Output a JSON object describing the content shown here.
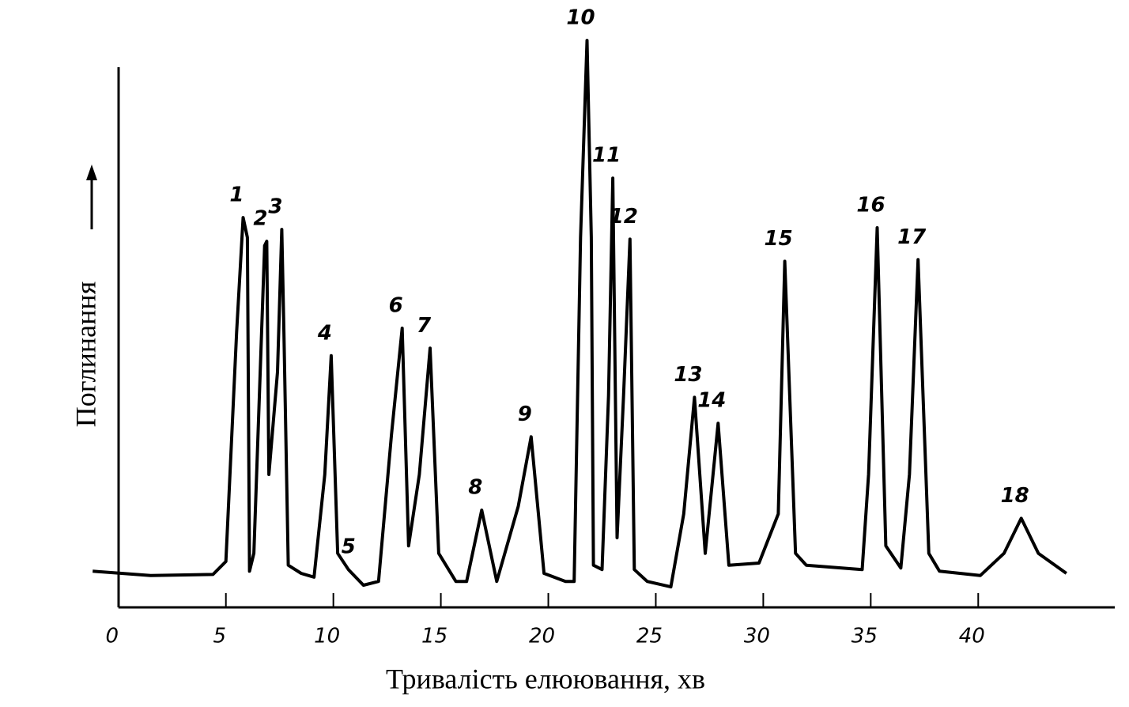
{
  "chart_data": {
    "type": "line",
    "x_label": "Тривалість елюювання, хв",
    "y_label": "Поглинання",
    "xlim": [
      -1.5,
      46.5
    ],
    "ylim": [
      0,
      110
    ],
    "xticks": [
      0,
      5,
      10,
      15,
      20,
      25,
      30,
      35,
      40
    ],
    "color": "#000000",
    "x": [
      -1.2,
      1.5,
      4.4,
      5.0,
      5.5,
      5.8,
      6.0,
      6.1,
      6.3,
      6.8,
      6.9,
      7.0,
      7.4,
      7.6,
      7.7,
      7.9,
      8.5,
      9.1,
      9.6,
      9.9,
      10.2,
      10.7,
      11.4,
      12.1,
      12.7,
      13.2,
      13.5,
      14.0,
      14.5,
      14.9,
      15.7,
      16.2,
      16.9,
      17.6,
      18.6,
      19.2,
      19.8,
      20.8,
      21.2,
      21.5,
      21.8,
      22.0,
      22.1,
      22.5,
      22.8,
      23.0,
      23.2,
      23.5,
      23.8,
      24.0,
      24.6,
      25.7,
      26.3,
      26.8,
      27.3,
      27.9,
      28.4,
      29.8,
      30.7,
      31.0,
      31.5,
      32.0,
      34.6,
      34.9,
      35.3,
      35.7,
      36.4,
      36.8,
      37.2,
      37.7,
      38.2,
      40.1,
      41.2,
      42.0,
      42.8,
      44.1
    ],
    "values": [
      6.7,
      5.9,
      6.1,
      8.5,
      51,
      72.2,
      68.5,
      6.7,
      10,
      67,
      67.8,
      24.6,
      43.6,
      70,
      51,
      7.8,
      6.3,
      5.6,
      24.6,
      46.6,
      10,
      7.0,
      4.1,
      4.8,
      31.9,
      51.7,
      11.4,
      24.6,
      48,
      10,
      4.8,
      4.8,
      18,
      4.8,
      18.7,
      31.6,
      6.3,
      4.8,
      4.8,
      68.5,
      105,
      68.5,
      7.8,
      7.0,
      39.2,
      79.5,
      12.9,
      39.2,
      68.2,
      7.0,
      4.8,
      3.8,
      17.3,
      38.9,
      10,
      34.1,
      7.8,
      8.2,
      17.3,
      64.1,
      10,
      7.8,
      7.0,
      24.6,
      70.3,
      11.4,
      7.3,
      24.6,
      64.4,
      10,
      6.7,
      5.9,
      10,
      16.5,
      10,
      6.3
    ],
    "peaks": [
      {
        "label": "1",
        "x": 5.8
      },
      {
        "label": "2",
        "x": 6.9
      },
      {
        "label": "3",
        "x": 7.6
      },
      {
        "label": "4",
        "x": 9.9
      },
      {
        "label": "5",
        "x": 11.0
      },
      {
        "label": "6",
        "x": 13.2
      },
      {
        "label": "7",
        "x": 14.5
      },
      {
        "label": "8",
        "x": 16.9
      },
      {
        "label": "9",
        "x": 19.2
      },
      {
        "label": "10",
        "x": 21.8
      },
      {
        "label": "11",
        "x": 23.0
      },
      {
        "label": "12",
        "x": 23.8
      },
      {
        "label": "13",
        "x": 26.8
      },
      {
        "label": "14",
        "x": 27.9
      },
      {
        "label": "15",
        "x": 31.0
      },
      {
        "label": "16",
        "x": 35.3
      },
      {
        "label": "17",
        "x": 37.2
      },
      {
        "label": "18",
        "x": 42.0
      }
    ]
  }
}
